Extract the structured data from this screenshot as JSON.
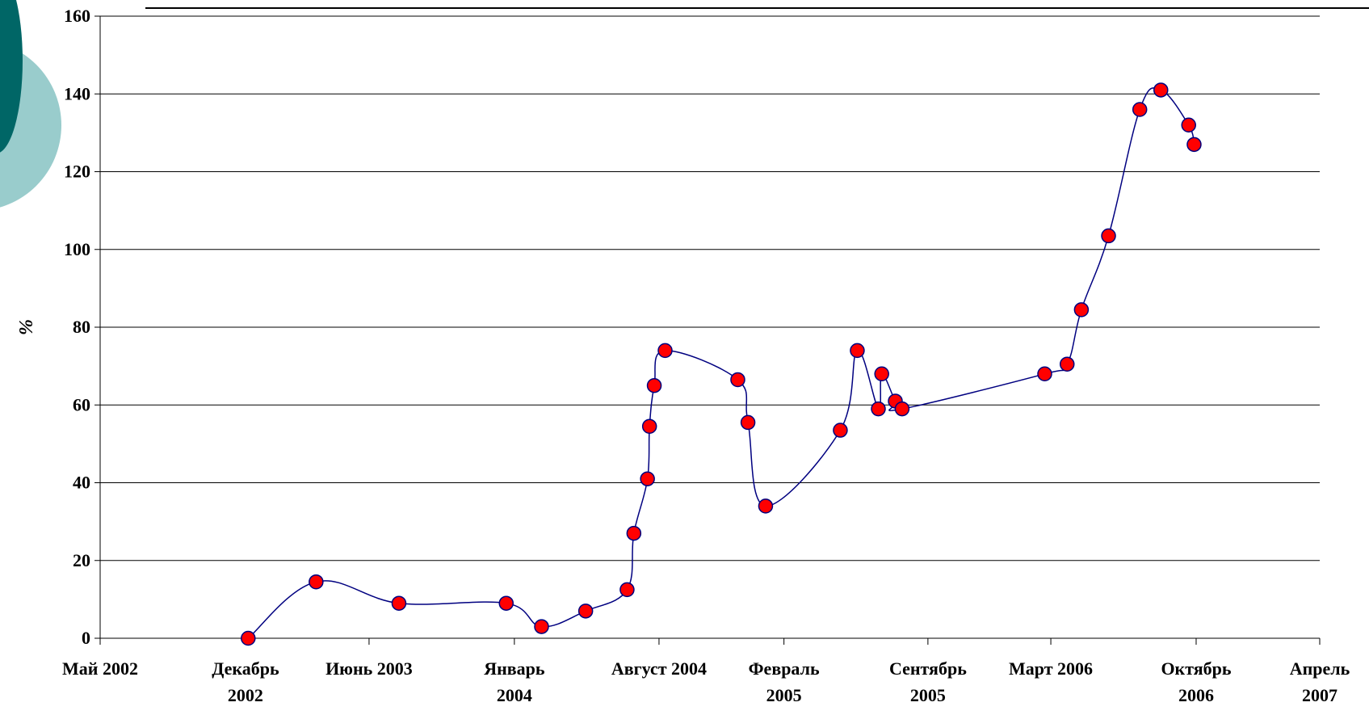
{
  "chart_data": {
    "type": "line",
    "ylabel": "%",
    "ylim": [
      0,
      160
    ],
    "yticks": [
      0,
      20,
      40,
      60,
      80,
      100,
      120,
      140,
      160
    ],
    "xlim": [
      "2002-05-01",
      "2007-04-01"
    ],
    "xticks": [
      {
        "date": "2002-05-01",
        "lines": [
          "Май 2002"
        ]
      },
      {
        "date": "2002-12-01",
        "lines": [
          "Декабрь",
          "2002"
        ]
      },
      {
        "date": "2003-06-01",
        "lines": [
          "Июнь 2003"
        ]
      },
      {
        "date": "2004-01-01",
        "lines": [
          "Январь",
          "2004"
        ]
      },
      {
        "date": "2004-08-01",
        "lines": [
          "Август 2004"
        ]
      },
      {
        "date": "2005-02-01",
        "lines": [
          "Февраль",
          "2005"
        ]
      },
      {
        "date": "2005-09-01",
        "lines": [
          "Сентябрь",
          "2005"
        ]
      },
      {
        "date": "2006-03-01",
        "lines": [
          "Март 2006"
        ]
      },
      {
        "date": "2006-10-01",
        "lines": [
          "Октябрь",
          "2006"
        ]
      },
      {
        "date": "2007-04-01",
        "lines": [
          "Апрель",
          "2007"
        ]
      }
    ],
    "grid": true,
    "colors": {
      "line": "#000080",
      "marker": "#ff0000",
      "marker_edge": "#000080",
      "grid": "#000000"
    },
    "series": [
      {
        "points": [
          {
            "x": "2002-12-05",
            "y": 0
          },
          {
            "x": "2003-03-15",
            "y": 14.5
          },
          {
            "x": "2003-07-15",
            "y": 9
          },
          {
            "x": "2003-12-20",
            "y": 9
          },
          {
            "x": "2004-02-10",
            "y": 3
          },
          {
            "x": "2004-04-15",
            "y": 7
          },
          {
            "x": "2004-06-15",
            "y": 12.5
          },
          {
            "x": "2004-06-25",
            "y": 27
          },
          {
            "x": "2004-07-15",
            "y": 41
          },
          {
            "x": "2004-07-18",
            "y": 54.5
          },
          {
            "x": "2004-07-25",
            "y": 65
          },
          {
            "x": "2004-08-10",
            "y": 74
          },
          {
            "x": "2004-11-25",
            "y": 66.5
          },
          {
            "x": "2004-12-10",
            "y": 55.5
          },
          {
            "x": "2005-01-05",
            "y": 34
          },
          {
            "x": "2005-04-25",
            "y": 53.5
          },
          {
            "x": "2005-05-20",
            "y": 74
          },
          {
            "x": "2005-06-20",
            "y": 59
          },
          {
            "x": "2005-06-25",
            "y": 68
          },
          {
            "x": "2005-07-15",
            "y": 61
          },
          {
            "x": "2005-07-25",
            "y": 59
          },
          {
            "x": "2006-02-20",
            "y": 68
          },
          {
            "x": "2006-03-25",
            "y": 70.5
          },
          {
            "x": "2006-04-15",
            "y": 84.5
          },
          {
            "x": "2006-05-25",
            "y": 103.5
          },
          {
            "x": "2006-07-10",
            "y": 136
          },
          {
            "x": "2006-08-10",
            "y": 141
          },
          {
            "x": "2006-09-20",
            "y": 132
          },
          {
            "x": "2006-09-28",
            "y": 127
          }
        ]
      }
    ]
  }
}
